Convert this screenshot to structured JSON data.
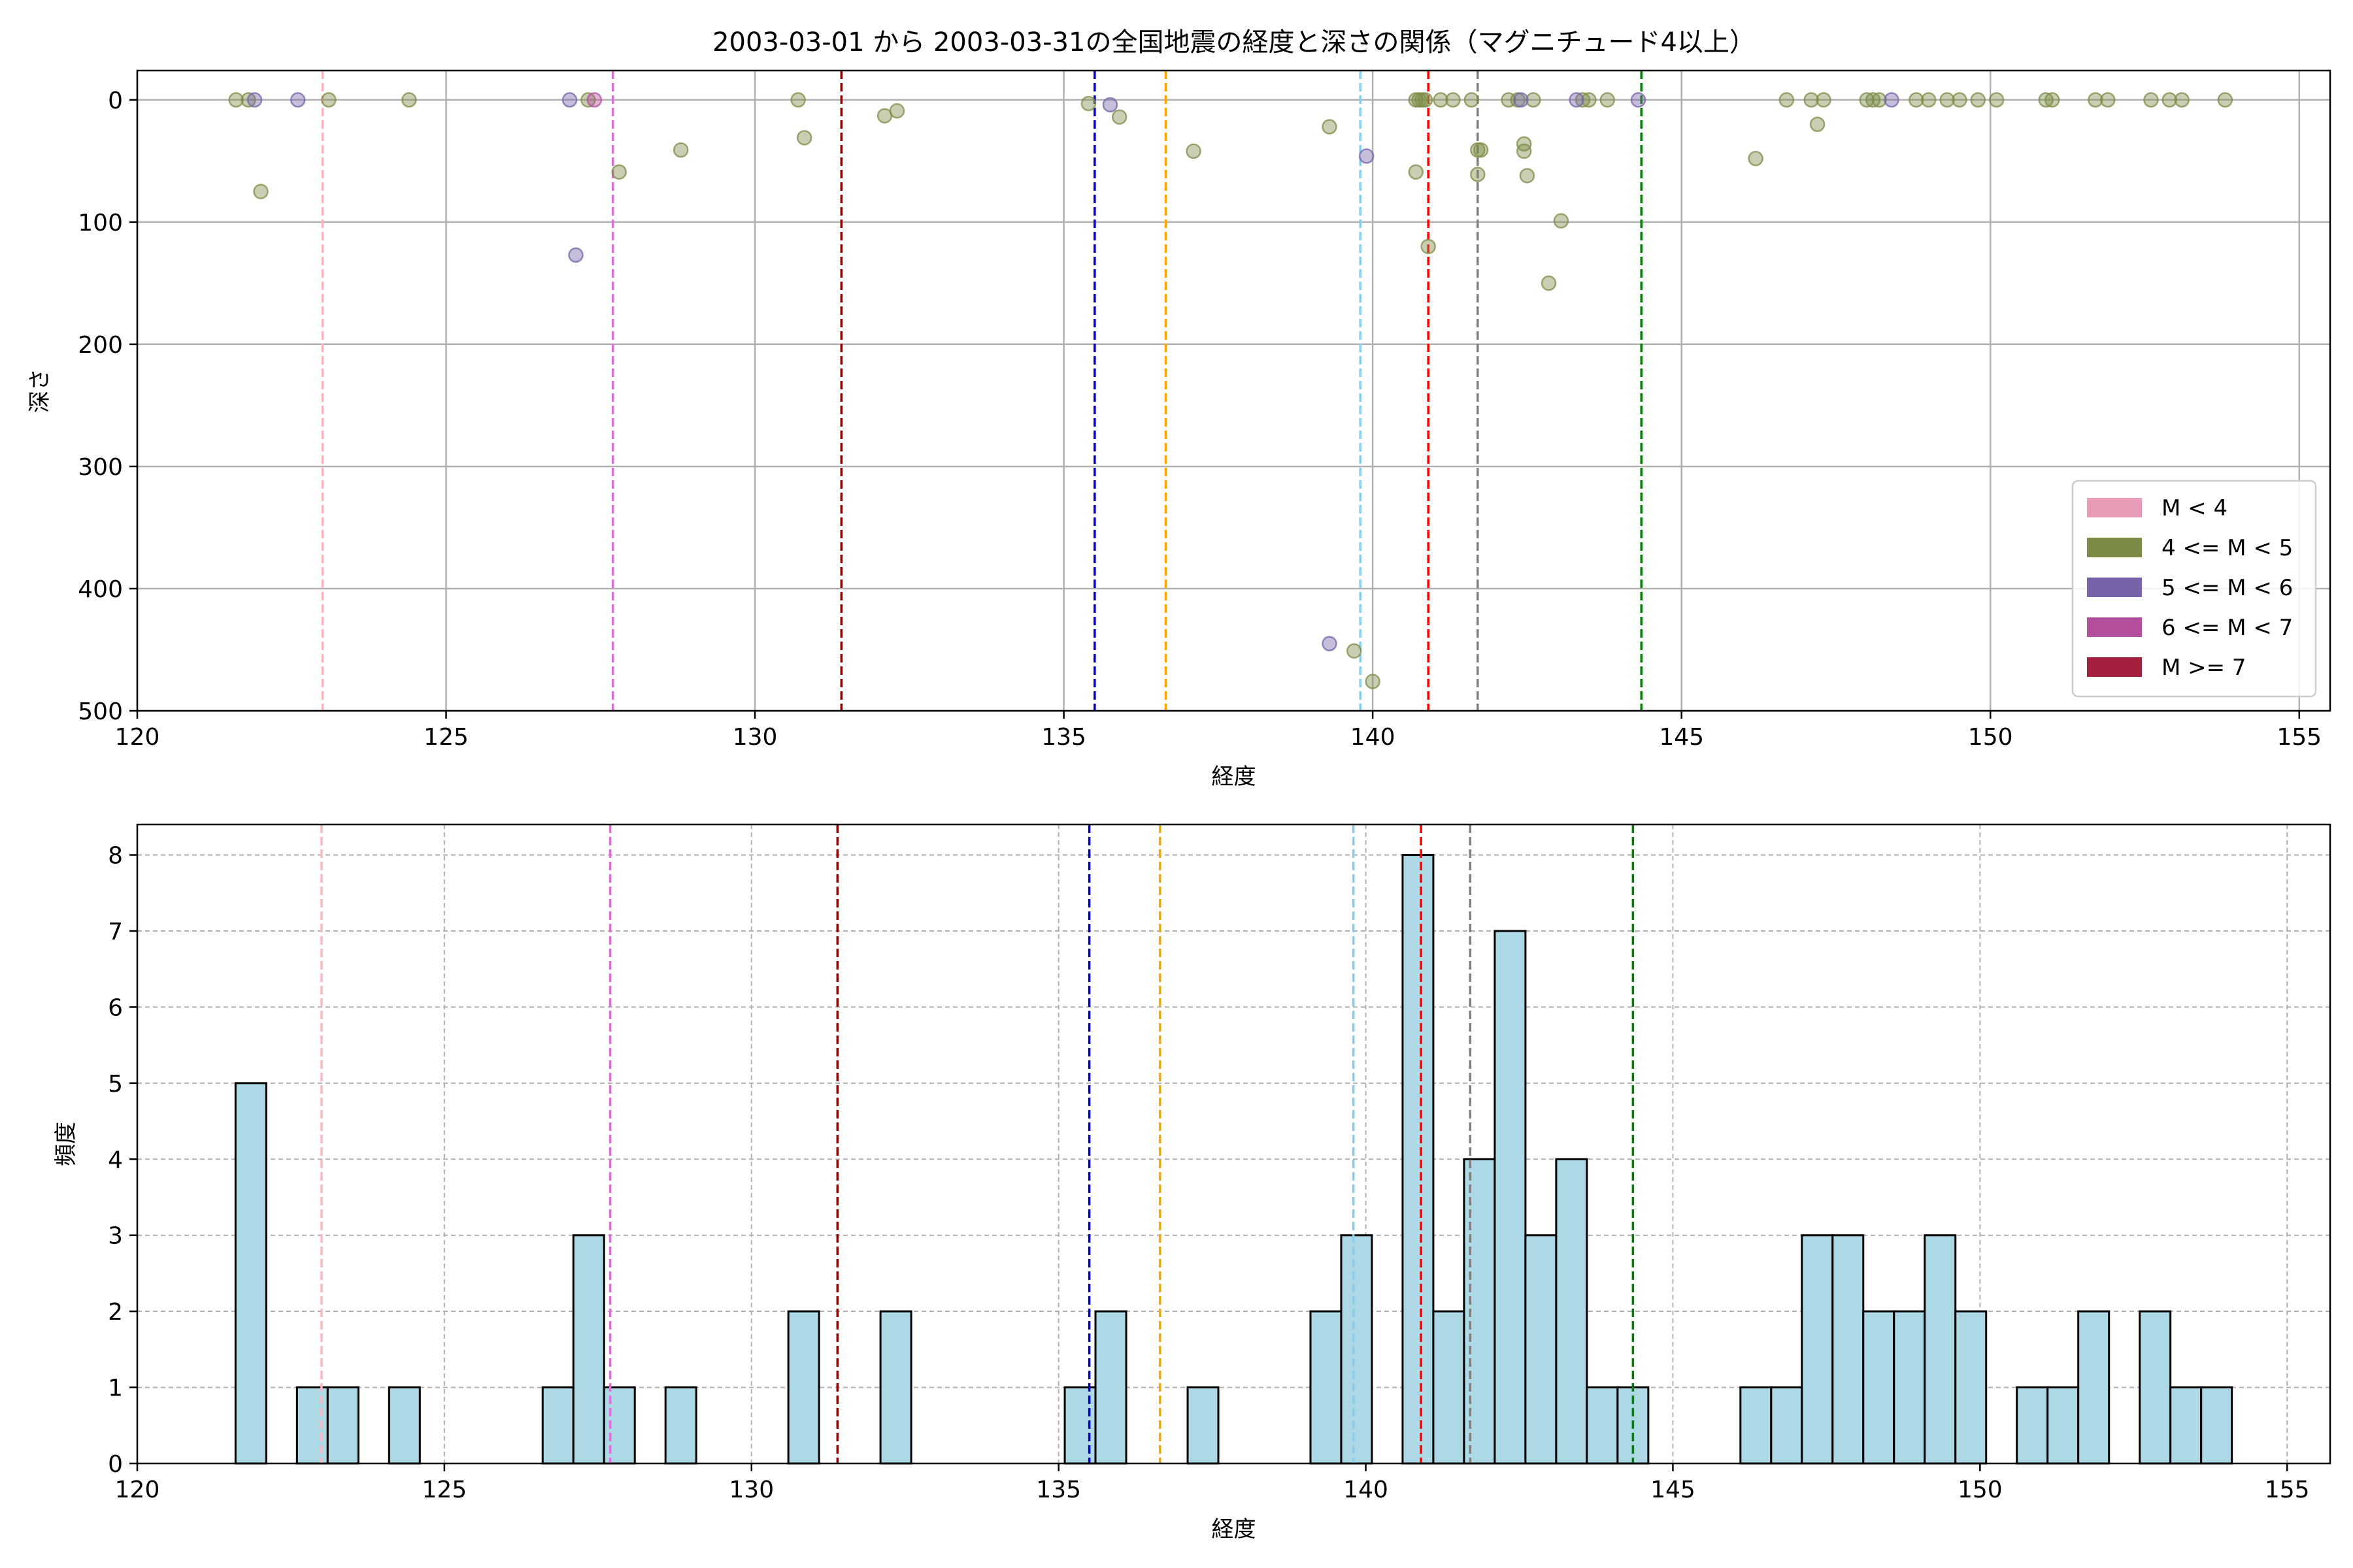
{
  "chart_data": [
    {
      "type": "scatter",
      "title": "2003-03-01 から 2003-03-31の全国地震の経度と深さの関係（マグニチュード4以上）",
      "xlabel": "経度",
      "ylabel": "深さ",
      "xlim": [
        120,
        155.5
      ],
      "ylim": [
        500,
        -24
      ],
      "y_inverted": true,
      "xticks": [
        120,
        125,
        130,
        135,
        140,
        145,
        150,
        155
      ],
      "yticks": [
        0,
        100,
        200,
        300,
        400,
        500
      ],
      "grid": true,
      "legend_placement": "lower-right",
      "legend": [
        {
          "label": "M < 4",
          "color": "#e89bb6"
        },
        {
          "label": "4 <= M < 5",
          "color": "#7c8c47"
        },
        {
          "label": "5 <= M < 6",
          "color": "#7663a9"
        },
        {
          "label": "6 <= M < 7",
          "color": "#b54e9c"
        },
        {
          "label": "M >= 7",
          "color": "#a3213f"
        }
      ],
      "vlines": [
        {
          "x": 123.0,
          "color": "#ffb6c1"
        },
        {
          "x": 127.7,
          "color": "#da70d6"
        },
        {
          "x": 131.4,
          "color": "#8b0000"
        },
        {
          "x": 135.5,
          "color": "#0000cd"
        },
        {
          "x": 136.65,
          "color": "#ffa500"
        },
        {
          "x": 139.8,
          "color": "#87ceeb"
        },
        {
          "x": 140.9,
          "color": "#ff0000"
        },
        {
          "x": 141.7,
          "color": "#808080"
        },
        {
          "x": 144.35,
          "color": "#008000"
        }
      ],
      "series": [
        {
          "name": "4 <= M < 5",
          "color": "#7c8c47",
          "points": [
            [
              121.6,
              0
            ],
            [
              121.8,
              0
            ],
            [
              122.0,
              75
            ],
            [
              123.1,
              0
            ],
            [
              124.4,
              0
            ],
            [
              127.3,
              0
            ],
            [
              127.8,
              59
            ],
            [
              128.8,
              41
            ],
            [
              130.7,
              0
            ],
            [
              130.8,
              31
            ],
            [
              132.1,
              13
            ],
            [
              132.3,
              9
            ],
            [
              135.4,
              3
            ],
            [
              135.9,
              14
            ],
            [
              137.1,
              42
            ],
            [
              139.3,
              22
            ],
            [
              139.7,
              451
            ],
            [
              140.0,
              476
            ],
            [
              140.7,
              0
            ],
            [
              140.75,
              0
            ],
            [
              140.8,
              0
            ],
            [
              140.85,
              0
            ],
            [
              140.7,
              59
            ],
            [
              140.9,
              120
            ],
            [
              141.1,
              0
            ],
            [
              141.3,
              0
            ],
            [
              141.6,
              0
            ],
            [
              141.7,
              41
            ],
            [
              141.75,
              41
            ],
            [
              141.7,
              61
            ],
            [
              142.2,
              0
            ],
            [
              142.35,
              0
            ],
            [
              142.45,
              36
            ],
            [
              142.45,
              42
            ],
            [
              142.5,
              62
            ],
            [
              142.6,
              0
            ],
            [
              142.85,
              150
            ],
            [
              143.05,
              99
            ],
            [
              143.4,
              0
            ],
            [
              143.5,
              0
            ],
            [
              143.8,
              0
            ],
            [
              146.2,
              48
            ],
            [
              146.7,
              0
            ],
            [
              147.1,
              0
            ],
            [
              147.3,
              0
            ],
            [
              147.2,
              20
            ],
            [
              148.0,
              0
            ],
            [
              148.1,
              0
            ],
            [
              148.2,
              0
            ],
            [
              148.8,
              0
            ],
            [
              149.0,
              0
            ],
            [
              149.3,
              0
            ],
            [
              149.5,
              0
            ],
            [
              149.8,
              0
            ],
            [
              150.1,
              0
            ],
            [
              150.9,
              0
            ],
            [
              151.0,
              0
            ],
            [
              151.7,
              0
            ],
            [
              151.9,
              0
            ],
            [
              152.6,
              0
            ],
            [
              152.9,
              0
            ],
            [
              153.1,
              0
            ],
            [
              153.8,
              0
            ]
          ]
        },
        {
          "name": "5 <= M < 6",
          "color": "#7663a9",
          "points": [
            [
              121.9,
              0
            ],
            [
              122.6,
              0
            ],
            [
              127.0,
              0
            ],
            [
              127.1,
              127
            ],
            [
              135.75,
              4
            ],
            [
              139.3,
              445
            ],
            [
              139.9,
              46
            ],
            [
              142.4,
              0
            ],
            [
              143.3,
              0
            ],
            [
              144.3,
              0
            ],
            [
              148.4,
              0
            ]
          ]
        },
        {
          "name": "6 <= M < 7",
          "color": "#b54e9c",
          "points": [
            [
              127.4,
              0
            ]
          ]
        }
      ]
    },
    {
      "type": "bar",
      "title": "",
      "xlabel": "経度",
      "ylabel": "頻度",
      "xlim": [
        120,
        155.7
      ],
      "ylim": [
        0,
        8.4
      ],
      "xticks": [
        120,
        125,
        130,
        135,
        140,
        145,
        150,
        155
      ],
      "yticks": [
        0,
        1,
        2,
        3,
        4,
        5,
        6,
        7,
        8
      ],
      "grid": true,
      "color": "#add8e6",
      "bin_width": 0.5,
      "bins": [
        [
          121.6,
          5
        ],
        [
          122.6,
          1
        ],
        [
          123.1,
          1
        ],
        [
          124.1,
          1
        ],
        [
          126.6,
          1
        ],
        [
          127.1,
          3
        ],
        [
          127.6,
          1
        ],
        [
          128.6,
          1
        ],
        [
          130.6,
          2
        ],
        [
          132.1,
          2
        ],
        [
          135.1,
          1
        ],
        [
          135.6,
          2
        ],
        [
          137.1,
          1
        ],
        [
          139.1,
          2
        ],
        [
          139.6,
          3
        ],
        [
          140.6,
          8
        ],
        [
          141.1,
          2
        ],
        [
          141.6,
          4
        ],
        [
          142.1,
          7
        ],
        [
          142.6,
          3
        ],
        [
          143.1,
          4
        ],
        [
          143.6,
          1
        ],
        [
          144.1,
          1
        ],
        [
          146.1,
          1
        ],
        [
          146.6,
          1
        ],
        [
          147.1,
          3
        ],
        [
          147.6,
          3
        ],
        [
          148.1,
          2
        ],
        [
          148.6,
          2
        ],
        [
          149.1,
          3
        ],
        [
          149.6,
          2
        ],
        [
          150.6,
          1
        ],
        [
          151.1,
          1
        ],
        [
          151.6,
          2
        ],
        [
          152.6,
          2
        ],
        [
          153.1,
          1
        ],
        [
          153.6,
          1
        ]
      ],
      "vlines": [
        {
          "x": 123.0,
          "color": "#ffb6c1"
        },
        {
          "x": 127.7,
          "color": "#da70d6"
        },
        {
          "x": 131.4,
          "color": "#8b0000"
        },
        {
          "x": 135.5,
          "color": "#0000cd"
        },
        {
          "x": 136.65,
          "color": "#ffa500"
        },
        {
          "x": 139.8,
          "color": "#87ceeb"
        },
        {
          "x": 140.9,
          "color": "#ff0000"
        },
        {
          "x": 141.7,
          "color": "#808080"
        },
        {
          "x": 144.35,
          "color": "#008000"
        }
      ]
    }
  ]
}
